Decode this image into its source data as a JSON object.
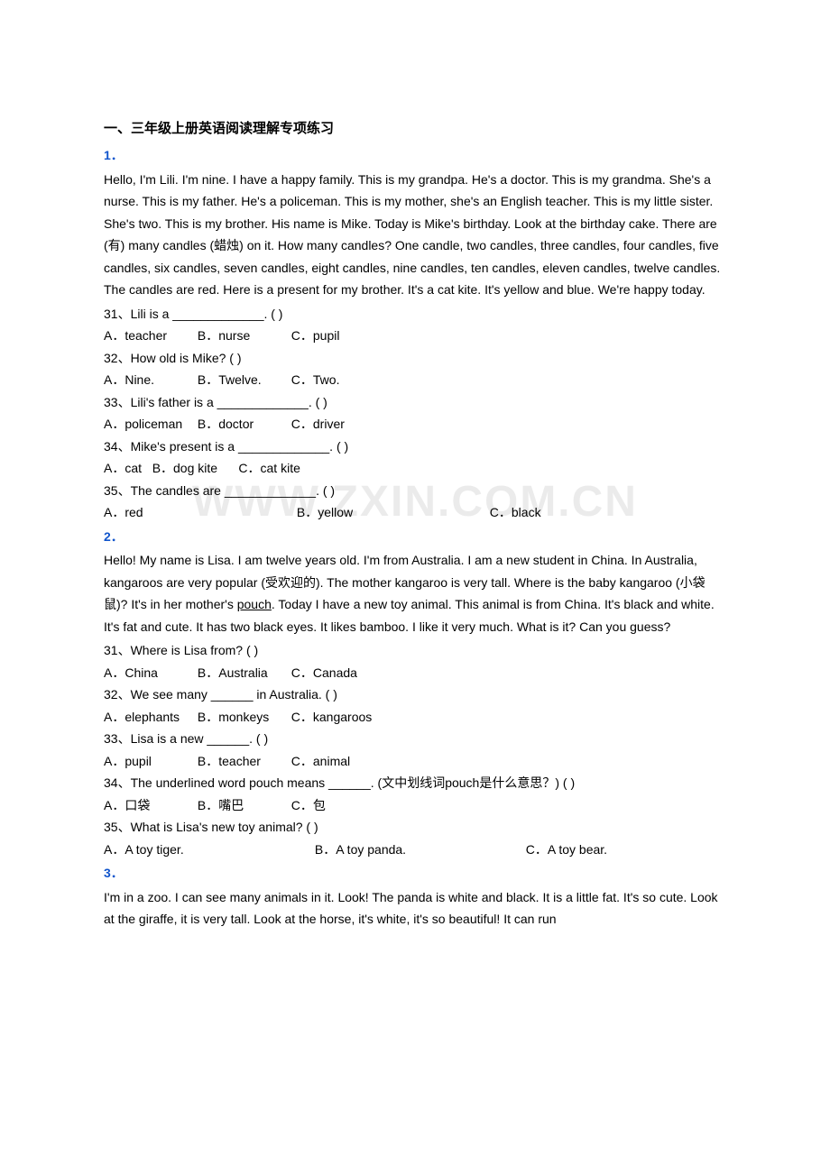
{
  "title": "一、三年级上册英语阅读理解专项练习",
  "watermark": "WWW.ZXIN.COM.CN",
  "sections": [
    {
      "num": "1．",
      "passage": "Hello, I'm Lili. I'm nine. I have a happy family. This is my grandpa. He's a doctor. This is my grandma. She's a nurse. This is my father. He's a policeman. This is my mother, she's an English teacher. This is my little sister. She's two. This is my brother. His name is Mike. Today is Mike's birthday. Look at the birthday cake. There are (有) many candles (蜡烛) on it. How many candles? One candle, two candles, three candles, four candles, five candles, six candles, seven candles, eight candles, nine candles, ten candles, eleven candles, twelve candles. The candles are red. Here is a present for my brother. It's a cat kite. It's yellow and blue. We're happy today.",
      "questions": [
        {
          "stem": "31、Lili is a _____________. (   )",
          "opts": [
            {
              "t": "A．teacher",
              "w": "w1"
            },
            {
              "t": "B．nurse",
              "w": "w1"
            },
            {
              "t": "C．pupil",
              "w": "w1"
            }
          ]
        },
        {
          "stem": "32、How old is Mike? (   )",
          "opts": [
            {
              "t": "A．Nine.",
              "w": "w1"
            },
            {
              "t": "B．Twelve.",
              "w": "w1"
            },
            {
              "t": "C．Two.",
              "w": "w1"
            }
          ]
        },
        {
          "stem": "33、Lili's father is a _____________. (   )",
          "opts": [
            {
              "t": "A．policeman",
              "w": "w1"
            },
            {
              "t": "B．doctor",
              "w": "w1"
            },
            {
              "t": "C．driver",
              "w": "w1"
            }
          ]
        },
        {
          "stem": "34、Mike's present is a _____________. (   )",
          "opts": [
            {
              "t": "A．cat",
              "w": ""
            },
            {
              "t": "B．dog kite",
              "w": ""
            },
            {
              "t": "C．cat kite",
              "w": ""
            }
          ],
          "inline_spacing": true
        },
        {
          "stem": "35、The candles are _____________. (   )",
          "opts": [
            {
              "t": "A．red",
              "w": "w2"
            },
            {
              "t": "B．yellow",
              "w": "w2"
            },
            {
              "t": "C．black",
              "w": ""
            }
          ]
        }
      ]
    },
    {
      "num": "2．",
      "passage_html": "Hello! My name is Lisa. I am twelve years old. I'm from Australia. I am a new student in China. In Australia, kangaroos are very popular (受欢迎的). The mother kangaroo is very tall. Where is the baby kangaroo (小袋鼠)? It's in her mother's <u>pouch</u>. Today I have a new toy animal. This animal is from China. It's black and white. It's fat and cute. It has two black eyes. It likes bamboo. I like it very much. What is it? Can you guess?",
      "questions": [
        {
          "stem": "31、Where is Lisa from? (    )",
          "opts": [
            {
              "t": "A．China",
              "w": "w1"
            },
            {
              "t": "B．Australia",
              "w": "w1"
            },
            {
              "t": "C．Canada",
              "w": "w1"
            }
          ]
        },
        {
          "stem": "32、We see many ______ in Australia. (    )",
          "opts": [
            {
              "t": "A．elephants",
              "w": "w1"
            },
            {
              "t": "B．monkeys",
              "w": "w1"
            },
            {
              "t": "C．kangaroos",
              "w": "w1"
            }
          ]
        },
        {
          "stem": "33、Lisa is a new ______. (    )",
          "opts": [
            {
              "t": "A．pupil",
              "w": "w1"
            },
            {
              "t": "B．teacher",
              "w": "w1"
            },
            {
              "t": "C．animal",
              "w": "w1"
            }
          ]
        },
        {
          "stem": "34、The underlined word pouch means ______. (文中划线词pouch是什么意思？) (    )",
          "opts": [
            {
              "t": "A．口袋",
              "w": "w1"
            },
            {
              "t": "B．嘴巴",
              "w": "w1"
            },
            {
              "t": "C．包",
              "w": "w1"
            }
          ]
        },
        {
          "stem": "35、What is Lisa's new toy animal? (    )",
          "opts": [
            {
              "t": "A．A toy tiger.",
              "w": "w3"
            },
            {
              "t": "B．A toy panda.",
              "w": "w3"
            },
            {
              "t": "C．A toy bear.",
              "w": ""
            }
          ]
        }
      ]
    },
    {
      "num": "3．",
      "passage": "I'm in a zoo. I can see many animals in it. Look! The panda is white and black. It is a little fat. It's so cute. Look at the giraffe, it is very tall. Look at the horse, it's white, it's so beautiful! It can run"
    }
  ]
}
